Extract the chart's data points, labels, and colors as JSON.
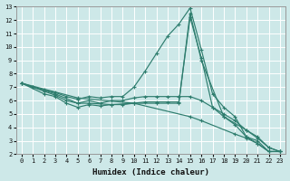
{
  "xlabel": "Humidex (Indice chaleur)",
  "bg_color": "#cde8e8",
  "grid_color": "#ffffff",
  "line_color": "#2e7d6e",
  "xlim": [
    -0.5,
    23.5
  ],
  "ylim": [
    2,
    13
  ],
  "xticks": [
    0,
    1,
    2,
    3,
    4,
    5,
    6,
    7,
    8,
    9,
    10,
    11,
    12,
    13,
    14,
    15,
    16,
    17,
    18,
    19,
    20,
    21,
    22,
    23
  ],
  "yticks": [
    2,
    3,
    4,
    5,
    6,
    7,
    8,
    9,
    10,
    11,
    12,
    13
  ],
  "lines": [
    {
      "x": [
        0,
        1,
        2,
        3,
        4,
        5,
        6,
        7,
        8,
        9,
        10,
        11,
        12,
        13,
        14,
        15,
        16,
        17,
        18,
        19,
        20,
        21,
        22,
        23
      ],
      "y": [
        7.3,
        7.0,
        6.8,
        6.6,
        6.3,
        6.1,
        6.3,
        6.2,
        6.3,
        6.3,
        7.0,
        8.2,
        9.5,
        10.8,
        11.7,
        12.9,
        9.8,
        6.5,
        5.5,
        4.8,
        3.3,
        3.0,
        2.2,
        2.2
      ]
    },
    {
      "x": [
        0,
        1,
        2,
        3,
        4,
        5,
        6,
        7,
        8,
        9,
        10,
        11,
        12,
        13,
        14,
        15,
        16,
        17,
        18,
        19,
        20,
        21,
        22,
        23
      ],
      "y": [
        7.3,
        7.0,
        6.7,
        6.4,
        6.0,
        5.8,
        6.0,
        5.8,
        6.0,
        6.0,
        6.2,
        6.3,
        6.3,
        6.3,
        6.3,
        6.3,
        6.0,
        5.5,
        5.0,
        4.5,
        3.8,
        3.3,
        2.5,
        2.2
      ]
    },
    {
      "x": [
        0,
        2,
        3,
        4,
        5,
        6,
        7,
        8,
        9,
        10,
        11,
        12,
        13,
        14,
        15,
        16,
        17,
        18,
        19,
        20,
        21,
        22,
        23
      ],
      "y": [
        7.3,
        6.5,
        6.3,
        5.8,
        5.5,
        5.7,
        5.6,
        5.7,
        5.7,
        5.8,
        5.9,
        5.9,
        5.9,
        5.9,
        12.2,
        9.2,
        5.5,
        4.8,
        4.2,
        3.3,
        2.8,
        2.2,
        2.2
      ]
    },
    {
      "x": [
        0,
        3,
        5,
        6,
        8,
        10,
        12,
        14,
        15,
        16,
        18,
        20,
        21,
        22,
        23
      ],
      "y": [
        7.3,
        6.5,
        5.8,
        5.8,
        5.7,
        5.8,
        5.8,
        5.8,
        12.5,
        9.0,
        4.8,
        3.8,
        3.2,
        2.5,
        2.2
      ]
    },
    {
      "x": [
        0,
        5,
        10,
        15,
        16,
        19,
        20,
        21,
        22,
        23
      ],
      "y": [
        7.3,
        6.2,
        5.8,
        4.8,
        4.5,
        3.5,
        3.2,
        2.8,
        2.2,
        2.2
      ]
    }
  ]
}
